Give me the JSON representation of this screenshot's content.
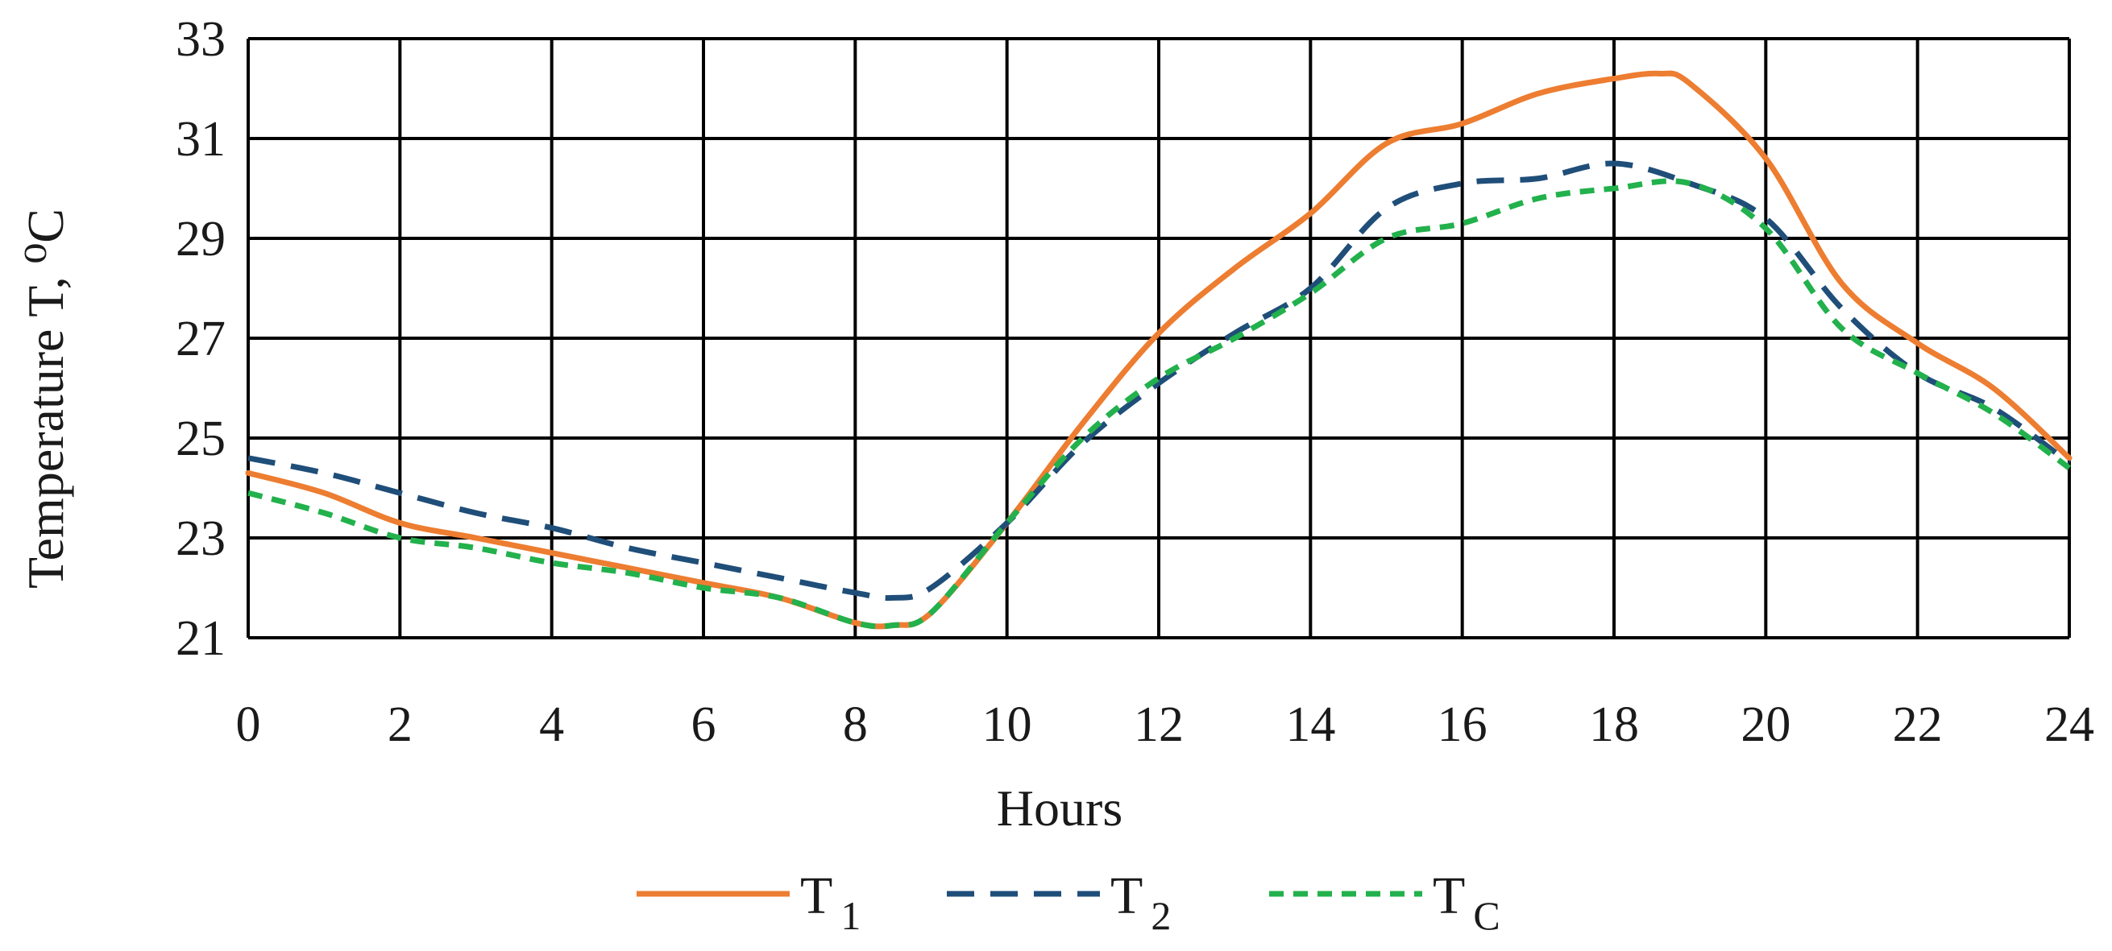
{
  "chart_data": {
    "type": "line",
    "xlabel": "Hours",
    "ylabel": "Temperature T, ⁰C",
    "xlim": [
      0,
      24
    ],
    "ylim": [
      21,
      33
    ],
    "x_ticks": [
      "0",
      "2",
      "4",
      "6",
      "8",
      "10",
      "12",
      "14",
      "16",
      "18",
      "20",
      "22",
      "24"
    ],
    "y_ticks": [
      "21",
      "23",
      "25",
      "27",
      "29",
      "31",
      "33"
    ],
    "grid": true,
    "legend_position": "bottom",
    "series": [
      {
        "name": "T",
        "subscript": "1",
        "color": "#ed7d31",
        "dash": "solid",
        "x": [
          0,
          1,
          2,
          3,
          4,
          5,
          6,
          7,
          8,
          8.5,
          9,
          10,
          11,
          12,
          13,
          14,
          15,
          16,
          17,
          18,
          18.6,
          19,
          20,
          21,
          22,
          23,
          24
        ],
        "y": [
          24.3,
          23.9,
          23.3,
          23.0,
          22.7,
          22.4,
          22.1,
          21.8,
          21.3,
          21.25,
          21.5,
          23.3,
          25.3,
          27.1,
          28.4,
          29.5,
          30.9,
          31.3,
          31.9,
          32.2,
          32.3,
          32.1,
          30.6,
          28.1,
          26.9,
          26.0,
          24.6
        ]
      },
      {
        "name": "T",
        "subscript": "2",
        "color": "#1f4e79",
        "dash": "dashed",
        "x": [
          0,
          1,
          2,
          3,
          4,
          5,
          6,
          7,
          8,
          8.5,
          9,
          10,
          11,
          12,
          13,
          14,
          15,
          16,
          17,
          18,
          19,
          20,
          21,
          22,
          23,
          24
        ],
        "y": [
          24.6,
          24.3,
          23.9,
          23.5,
          23.2,
          22.8,
          22.5,
          22.2,
          21.9,
          21.8,
          22.0,
          23.3,
          24.9,
          26.1,
          27.1,
          28.0,
          29.6,
          30.1,
          30.2,
          30.5,
          30.1,
          29.4,
          27.6,
          26.3,
          25.6,
          24.5
        ]
      },
      {
        "name": "T",
        "subscript": "C",
        "color": "#22b14c",
        "dash": "dotted",
        "x": [
          0,
          1,
          2,
          3,
          4,
          5,
          6,
          7,
          8,
          8.5,
          9,
          10,
          11,
          12,
          13,
          14,
          15,
          16,
          17,
          18,
          19,
          20,
          21,
          22,
          23,
          24
        ],
        "y": [
          23.9,
          23.5,
          23.0,
          22.8,
          22.5,
          22.3,
          22.0,
          21.8,
          21.3,
          21.25,
          21.5,
          23.3,
          25.0,
          26.2,
          27.0,
          27.9,
          29.0,
          29.3,
          29.8,
          30.0,
          30.1,
          29.2,
          27.2,
          26.3,
          25.5,
          24.4
        ]
      }
    ]
  }
}
